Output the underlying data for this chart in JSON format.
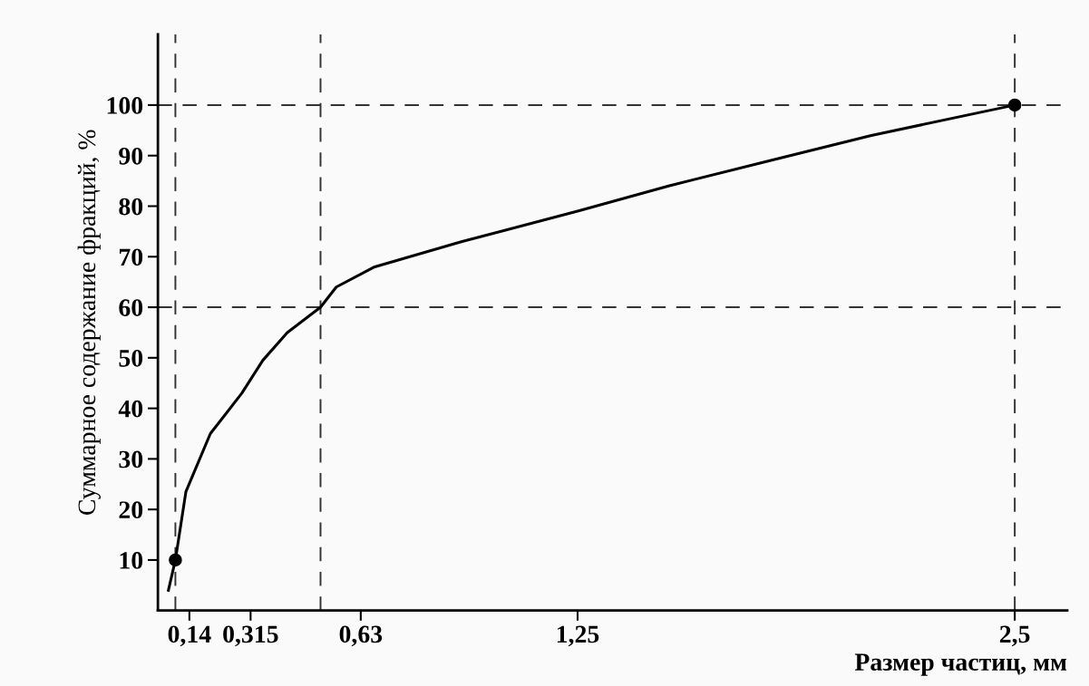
{
  "chart_data": {
    "type": "line",
    "xlabel": "Размер частиц, мм",
    "ylabel": "Суммарное содержание фракций, %",
    "xlim": [
      0.05,
      2.65
    ],
    "ylim": [
      0,
      114
    ],
    "xticks": [
      {
        "value": 0.14,
        "label": "0,14"
      },
      {
        "value": 0.315,
        "label": "0,315"
      },
      {
        "value": 0.63,
        "label": "0,63"
      },
      {
        "value": 1.25,
        "label": "1,25"
      },
      {
        "value": 2.5,
        "label": "2,5"
      }
    ],
    "yticks": [
      10,
      20,
      30,
      40,
      50,
      60,
      70,
      80,
      90,
      100
    ],
    "series": [
      {
        "color": "#000000",
        "marker": "none",
        "x": [
          0.08,
          0.1,
          0.13,
          0.2,
          0.29,
          0.35,
          0.42,
          0.515,
          0.56,
          0.67,
          0.92,
          1.25,
          1.51,
          1.8,
          2.09,
          2.5
        ],
        "values": [
          4,
          10,
          23.5,
          35,
          43,
          49.5,
          55,
          60,
          64,
          68,
          73,
          79,
          84,
          89,
          94,
          100
        ]
      },
      {
        "type": "scatter",
        "color": "#000000",
        "marker": "circle",
        "x": [
          0.1,
          2.5
        ],
        "values": [
          10,
          100
        ]
      }
    ],
    "ref_lines": [
      {
        "axis": "y",
        "value": 100,
        "color": "#333333",
        "line_style": "dashed"
      },
      {
        "axis": "y",
        "value": 60,
        "color": "#333333",
        "line_style": "dashed"
      },
      {
        "axis": "x",
        "value": 0.1,
        "color": "#333333",
        "line_style": "dashed"
      },
      {
        "axis": "x",
        "value": 0.515,
        "color": "#333333",
        "line_style": "dashed"
      },
      {
        "axis": "x",
        "value": 2.5,
        "color": "#333333",
        "line_style": "dashed"
      }
    ],
    "grid": false,
    "legend": false
  }
}
